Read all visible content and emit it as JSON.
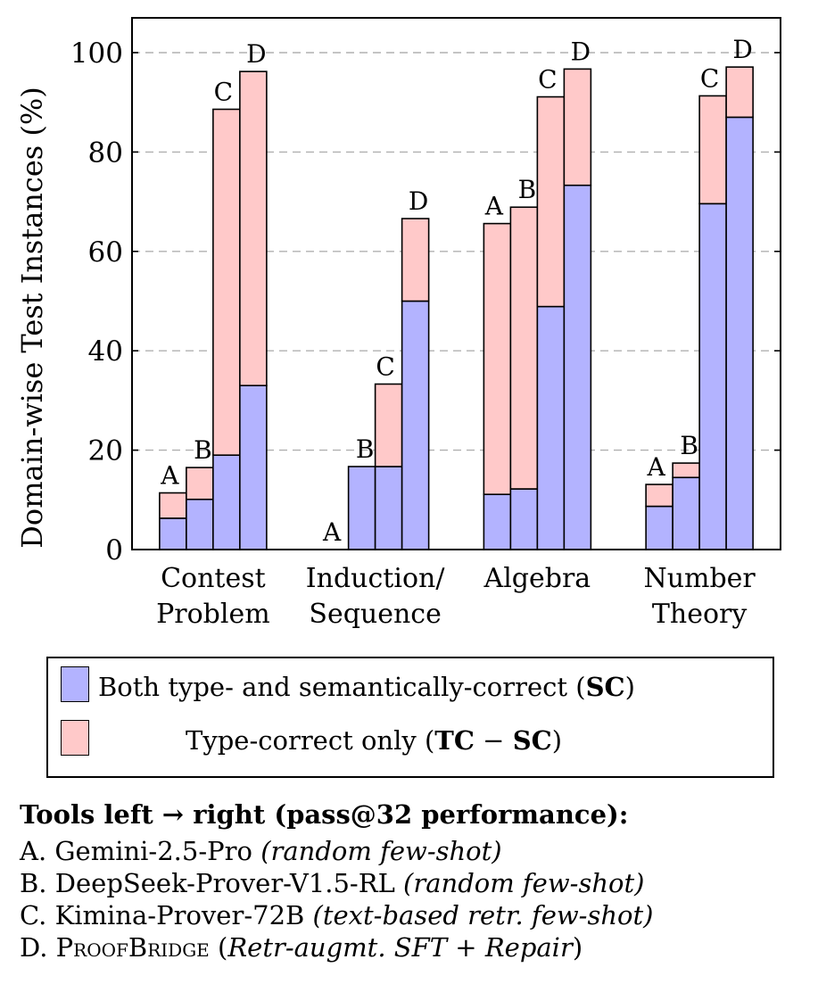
{
  "chart_data": {
    "type": "bar",
    "stacked": true,
    "ylabel": "Domain-wise Test Instances (%)",
    "ylim": [
      0,
      107
    ],
    "yticks": [
      0,
      20,
      40,
      60,
      80,
      100
    ],
    "grid": "horizontal dashed",
    "categories": [
      "Contest Problem",
      "Induction/ Sequence",
      "Algebra",
      "Number Theory"
    ],
    "category_labels": [
      [
        "Contest",
        "Problem"
      ],
      [
        "Induction/",
        "Sequence"
      ],
      [
        "Algebra"
      ],
      [
        "Number",
        "Theory"
      ]
    ],
    "tools": [
      "A",
      "B",
      "C",
      "D"
    ],
    "series": [
      {
        "name": "Both type- and semantically-correct (SC)",
        "color": "#b3b3ff",
        "values": [
          [
            6.3,
            10.1,
            19,
            33
          ],
          [
            0,
            16.7,
            16.7,
            50
          ],
          [
            11.1,
            12.2,
            48.9,
            73.3
          ],
          [
            8.7,
            14.5,
            69.6,
            87
          ]
        ]
      },
      {
        "name": "Type-correct only (TC − SC)",
        "color": "#ffc9c9",
        "values": [
          [
            5.1,
            6.4,
            69.6,
            63.2
          ],
          [
            0,
            0,
            16.6,
            16.6
          ],
          [
            54.5,
            56.7,
            42.2,
            23.4
          ],
          [
            4.4,
            2.9,
            21.7,
            10.1
          ]
        ]
      }
    ]
  },
  "legend": {
    "sc_label_prefix": "Both type- and semantically-correct (",
    "sc_label_bold": "SC",
    "sc_label_suffix": ")",
    "tc_label_prefix": "Type-correct only (",
    "tc_label_bold_1": "TC",
    "tc_label_mid": " − ",
    "tc_label_bold_2": "SC",
    "tc_label_suffix": ")"
  },
  "notes": {
    "title": "Tools left → right (pass@32 performance):",
    "tools": [
      {
        "name": "A. Gemini-2.5-Pro ",
        "setting": "(random few-shot)"
      },
      {
        "name": "B. DeepSeek-Prover-V1.5-RL ",
        "setting": "(random few-shot)"
      },
      {
        "name": "C. Kimina-Prover-72B ",
        "setting": "(text-based retr. few-shot)"
      }
    ],
    "tool_d_prefix": "D. ",
    "tool_d_name": "ProofBridge",
    "tool_d_open": " (",
    "tool_d_setting": "Retr-augmt. SFT + Repair",
    "tool_d_close": ")"
  }
}
